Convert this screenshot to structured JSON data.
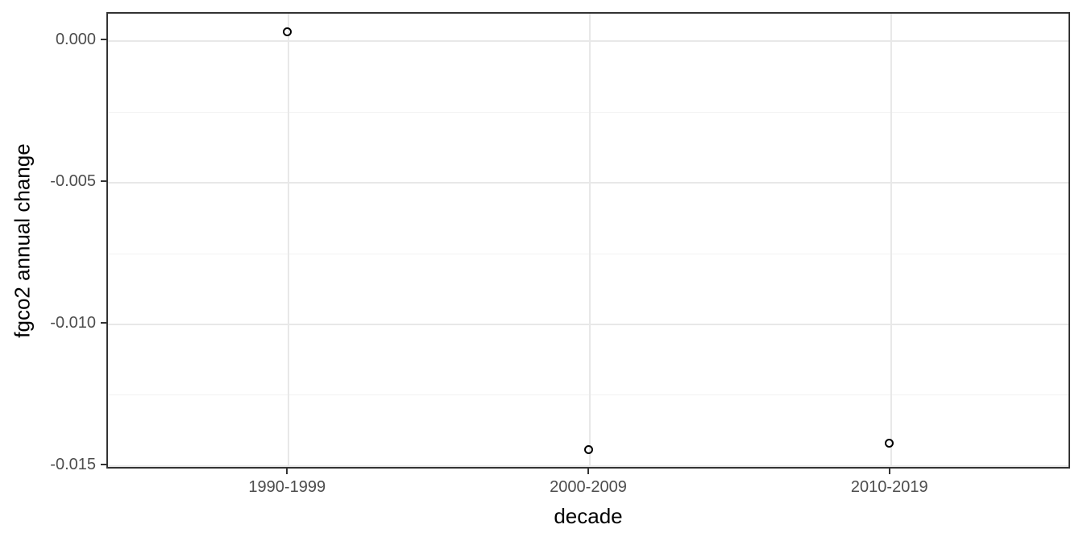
{
  "chart_data": {
    "type": "scatter",
    "title": "",
    "xlabel": "decade",
    "ylabel": "fgco2 annual change",
    "categories": [
      "1990-1999",
      "2000-2009",
      "2010-2019"
    ],
    "values": [
      0.00028,
      -0.01449,
      -0.01424
    ],
    "ylim": [
      -0.01515,
      0.00098
    ],
    "y_major_ticks": [
      0,
      -0.005,
      -0.01,
      -0.015
    ],
    "y_tick_labels": [
      "0.000",
      "-0.005",
      "-0.010",
      "-0.015"
    ],
    "y_minor_ticks": [
      -0.0025,
      -0.0075,
      -0.0125
    ],
    "grid": "major-and-minor-horizontal, major-vertical",
    "legend": "none",
    "marker": {
      "shape": "open-circle",
      "size": 11,
      "stroke": "#000000",
      "stroke_width": 2
    },
    "colors": {
      "background": "#ffffff",
      "panel_background": "#ffffff",
      "panel_border": "#333333",
      "grid_major": "#e8e8e8",
      "grid_minor": "#f2f2f2",
      "tick_mark": "#333333",
      "tick_label": "#4d4d4d",
      "axis_title": "#000000"
    }
  }
}
